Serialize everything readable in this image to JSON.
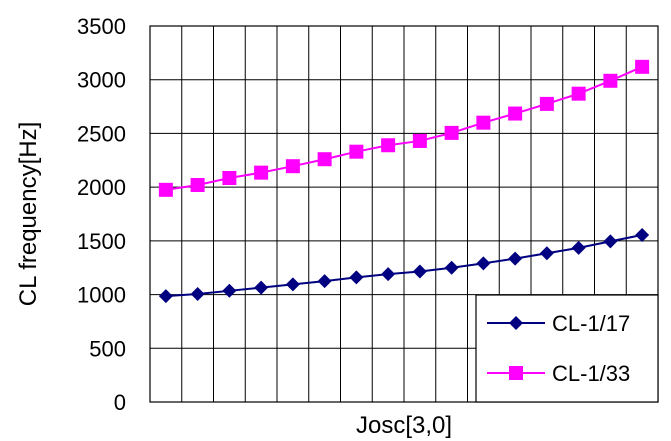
{
  "chart_data": {
    "type": "line",
    "title": "",
    "xlabel": "Josc[3,0]",
    "ylabel": "CL frequency[Hz]",
    "ylim": [
      0,
      3500
    ],
    "yticks": [
      "0",
      "500",
      "1000",
      "1500",
      "2000",
      "2500",
      "3000",
      "3500"
    ],
    "grid": true,
    "legend_position": "bottom-right",
    "x": [
      1,
      2,
      3,
      4,
      5,
      6,
      7,
      8,
      9,
      10,
      11,
      12,
      13,
      14,
      15,
      16
    ],
    "series": [
      {
        "name": "CL-1/17",
        "color": "#000080",
        "marker": "diamond",
        "values": [
          985,
          1005,
          1035,
          1065,
          1095,
          1125,
          1160,
          1190,
          1215,
          1250,
          1290,
          1335,
          1385,
          1435,
          1495,
          1555
        ]
      },
      {
        "name": "CL-1/33",
        "color": "#ff00ff",
        "marker": "square",
        "values": [
          1975,
          2020,
          2085,
          2135,
          2195,
          2260,
          2330,
          2390,
          2430,
          2505,
          2600,
          2685,
          2775,
          2870,
          2990,
          3120
        ]
      }
    ]
  }
}
